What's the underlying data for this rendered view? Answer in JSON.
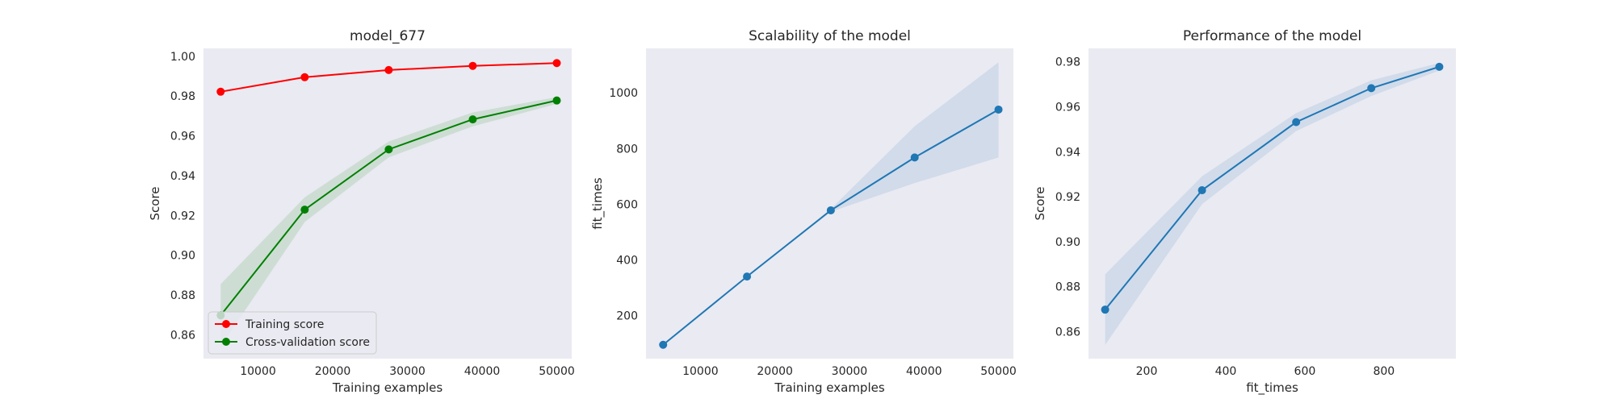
{
  "chart_data": [
    {
      "type": "line",
      "title": "model_677",
      "xlabel": "Training examples",
      "ylabel": "Score",
      "xlim": [
        2700,
        52000
      ],
      "ylim": [
        0.848,
        1.004
      ],
      "xticks": [
        10000,
        20000,
        30000,
        40000,
        50000
      ],
      "yticks": [
        0.86,
        0.88,
        0.9,
        0.92,
        0.94,
        0.96,
        0.98,
        1.0
      ],
      "ytick_labels": [
        "0.86",
        "0.88",
        "0.90",
        "0.92",
        "0.94",
        "0.96",
        "0.98",
        "1.00"
      ],
      "grid": false,
      "legend_position": "lower-left",
      "series": [
        {
          "name": "Training score",
          "color": "#ff0000",
          "x": [
            5000,
            16250,
            27500,
            38750,
            50000
          ],
          "y": [
            0.9822,
            0.9895,
            0.9931,
            0.9952,
            0.9966
          ],
          "upper": [
            0.9826,
            0.9899,
            0.9934,
            0.9955,
            0.9968
          ],
          "lower": [
            0.9818,
            0.9891,
            0.9928,
            0.9949,
            0.9964
          ]
        },
        {
          "name": "Cross-validation score",
          "color": "#008000",
          "x": [
            5000,
            16250,
            27500,
            38750,
            50000
          ],
          "y": [
            0.8698,
            0.9229,
            0.9532,
            0.9683,
            0.9778
          ],
          "upper": [
            0.8855,
            0.9291,
            0.9572,
            0.9718,
            0.9795
          ],
          "lower": [
            0.8541,
            0.9167,
            0.9492,
            0.9648,
            0.9761
          ]
        }
      ]
    },
    {
      "type": "line",
      "title": "Scalability of the model",
      "xlabel": "Training examples",
      "ylabel": "fit_times",
      "xlim": [
        2700,
        52000
      ],
      "ylim": [
        45,
        1160
      ],
      "xticks": [
        10000,
        20000,
        30000,
        40000,
        50000
      ],
      "yticks": [
        200,
        400,
        600,
        800,
        1000
      ],
      "grid": false,
      "series": [
        {
          "color": "#1f77b4",
          "x": [
            5000,
            16250,
            27500,
            38750,
            50000
          ],
          "y": [
            95,
            340,
            578,
            768,
            940
          ],
          "upper": [
            96,
            342,
            583,
            880,
            1110
          ],
          "lower": [
            94,
            338,
            573,
            676,
            768
          ]
        }
      ]
    },
    {
      "type": "line",
      "title": "Performance of the model",
      "xlabel": "fit_times",
      "ylabel": "Score",
      "xlim": [
        53,
        982
      ],
      "ylim": [
        0.848,
        0.986
      ],
      "xticks": [
        200,
        400,
        600,
        800
      ],
      "yticks": [
        0.86,
        0.88,
        0.9,
        0.92,
        0.94,
        0.96,
        0.98
      ],
      "ytick_labels": [
        "0.86",
        "0.88",
        "0.90",
        "0.92",
        "0.94",
        "0.96",
        "0.98"
      ],
      "grid": false,
      "series": [
        {
          "color": "#1f77b4",
          "x": [
            95,
            340,
            578,
            768,
            940
          ],
          "y": [
            0.8698,
            0.9229,
            0.9532,
            0.9683,
            0.9778
          ],
          "upper": [
            0.8855,
            0.9291,
            0.9572,
            0.9718,
            0.9795
          ],
          "lower": [
            0.8541,
            0.9167,
            0.9492,
            0.9648,
            0.9761
          ]
        }
      ]
    }
  ]
}
